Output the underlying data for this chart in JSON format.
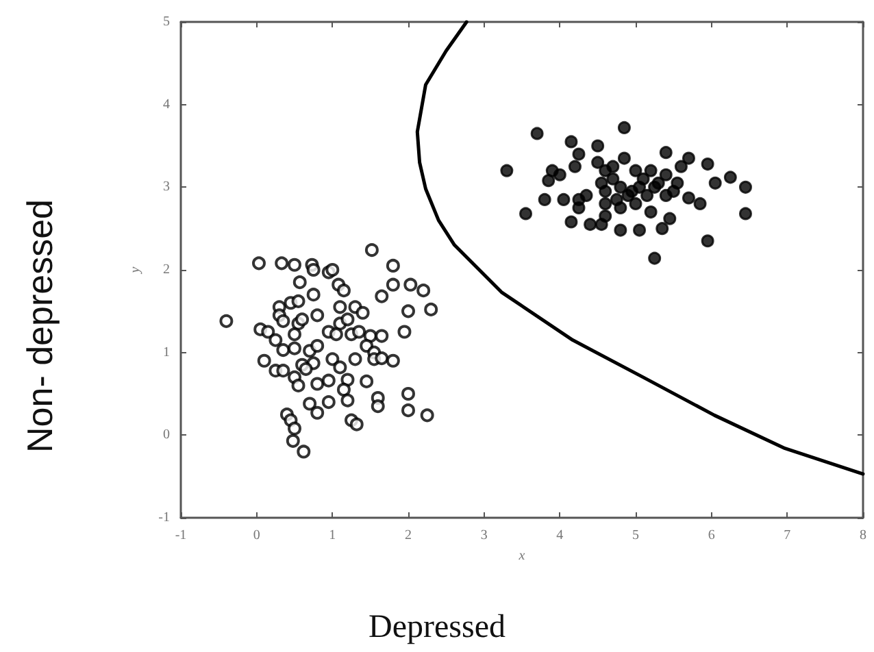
{
  "chart_data": {
    "type": "scatter",
    "xlabel": "x",
    "ylabel": "y",
    "annotations": [
      "Non- depressed",
      "Depressed"
    ],
    "xlim": [
      -1,
      8
    ],
    "xticks": [
      -1,
      0,
      1,
      2,
      3,
      4,
      5,
      6,
      7,
      8
    ],
    "ylim": [
      -1,
      5
    ],
    "yticks": [
      -1,
      0,
      1,
      2,
      3,
      4,
      5
    ],
    "grid": false,
    "marker": "circle",
    "series": [
      {
        "color": "#000000",
        "x": [
          -0.4,
          0.03,
          0.33,
          0.5,
          0.73,
          0.75,
          0.95,
          1.0,
          1.52,
          1.8,
          0.57,
          1.08,
          1.15,
          1.8,
          2.03,
          2.2,
          0.75,
          1.65,
          0.3,
          0.45,
          0.55,
          0.8,
          1.1,
          1.3,
          1.4,
          2.0,
          2.3,
          0.3,
          0.35,
          0.55,
          0.6,
          1.1,
          1.2,
          0.05,
          0.15,
          0.25,
          0.5,
          0.95,
          1.05,
          1.25,
          1.35,
          1.5,
          1.65,
          1.95,
          0.35,
          0.5,
          0.7,
          0.8,
          1.45,
          1.55,
          0.1,
          0.6,
          0.75,
          1.0,
          1.1,
          1.3,
          1.55,
          1.65,
          1.8,
          0.25,
          0.35,
          0.65,
          0.5,
          0.55,
          0.8,
          0.95,
          1.2,
          1.45,
          1.15,
          1.2,
          1.6,
          1.6,
          2.0,
          0.7,
          0.95,
          0.8,
          2.0,
          2.25,
          1.25,
          1.32,
          0.4,
          0.45,
          0.5,
          0.48,
          0.62
        ],
        "values": [
          1.38,
          2.08,
          2.08,
          2.06,
          2.06,
          2.0,
          1.97,
          2.0,
          2.24,
          2.05,
          1.85,
          1.82,
          1.75,
          1.82,
          1.82,
          1.75,
          1.7,
          1.68,
          1.55,
          1.6,
          1.62,
          1.45,
          1.55,
          1.55,
          1.48,
          1.5,
          1.52,
          1.45,
          1.38,
          1.35,
          1.4,
          1.35,
          1.4,
          1.28,
          1.25,
          1.15,
          1.22,
          1.25,
          1.22,
          1.22,
          1.25,
          1.2,
          1.2,
          1.25,
          1.03,
          1.05,
          1.02,
          1.08,
          1.08,
          1.0,
          0.9,
          0.85,
          0.87,
          0.92,
          0.82,
          0.92,
          0.92,
          0.93,
          0.9,
          0.78,
          0.78,
          0.8,
          0.7,
          0.6,
          0.62,
          0.66,
          0.67,
          0.65,
          0.55,
          0.42,
          0.45,
          0.35,
          0.5,
          0.38,
          0.4,
          0.27,
          0.3,
          0.24,
          0.18,
          0.13,
          0.25,
          0.18,
          0.08,
          -0.07,
          -0.2
        ]
      },
      {
        "color": "#000000",
        "x": [
          3.3,
          3.7,
          4.85,
          4.15,
          4.5,
          4.25,
          4.85,
          5.4,
          5.7,
          5.95,
          4.2,
          4.5,
          3.85,
          4.0,
          3.9,
          4.6,
          4.7,
          5.0,
          5.2,
          5.4,
          5.6,
          6.25,
          6.05,
          6.45,
          3.8,
          4.05,
          4.25,
          4.35,
          4.6,
          4.8,
          4.9,
          5.05,
          5.25,
          5.4,
          5.5,
          5.7,
          5.85,
          4.25,
          4.6,
          4.8,
          5.0,
          5.2,
          3.55,
          4.15,
          4.4,
          4.55,
          4.6,
          4.8,
          5.05,
          5.35,
          5.45,
          6.45,
          5.95,
          5.25,
          4.7,
          5.1,
          5.3,
          4.95,
          4.75,
          5.15,
          5.55,
          4.55
        ],
        "values": [
          3.2,
          3.65,
          3.72,
          3.55,
          3.5,
          3.4,
          3.35,
          3.42,
          3.35,
          3.28,
          3.25,
          3.3,
          3.08,
          3.15,
          3.2,
          3.2,
          3.1,
          3.2,
          3.2,
          3.15,
          3.25,
          3.12,
          3.05,
          3.0,
          2.85,
          2.85,
          2.85,
          2.9,
          2.95,
          3.0,
          2.9,
          3.0,
          3.0,
          2.9,
          2.95,
          2.87,
          2.8,
          2.75,
          2.8,
          2.75,
          2.8,
          2.7,
          2.68,
          2.58,
          2.55,
          2.55,
          2.65,
          2.48,
          2.48,
          2.5,
          2.62,
          2.68,
          2.35,
          2.14,
          3.25,
          3.1,
          3.05,
          2.95,
          2.85,
          2.9,
          3.05,
          3.05
        ]
      },
      {
        "type": "line",
        "color": "#000000",
        "marker": "none",
        "x": [
          2.77,
          2.5,
          2.23,
          2.12,
          2.15,
          2.23,
          2.4,
          2.61,
          3.23,
          4.17,
          5.1,
          6.04,
          6.97,
          8
        ],
        "values": [
          5,
          4.65,
          4.24,
          3.67,
          3.3,
          2.98,
          2.6,
          2.3,
          1.73,
          1.15,
          0.7,
          0.24,
          -0.16,
          -0.47
        ]
      }
    ]
  }
}
